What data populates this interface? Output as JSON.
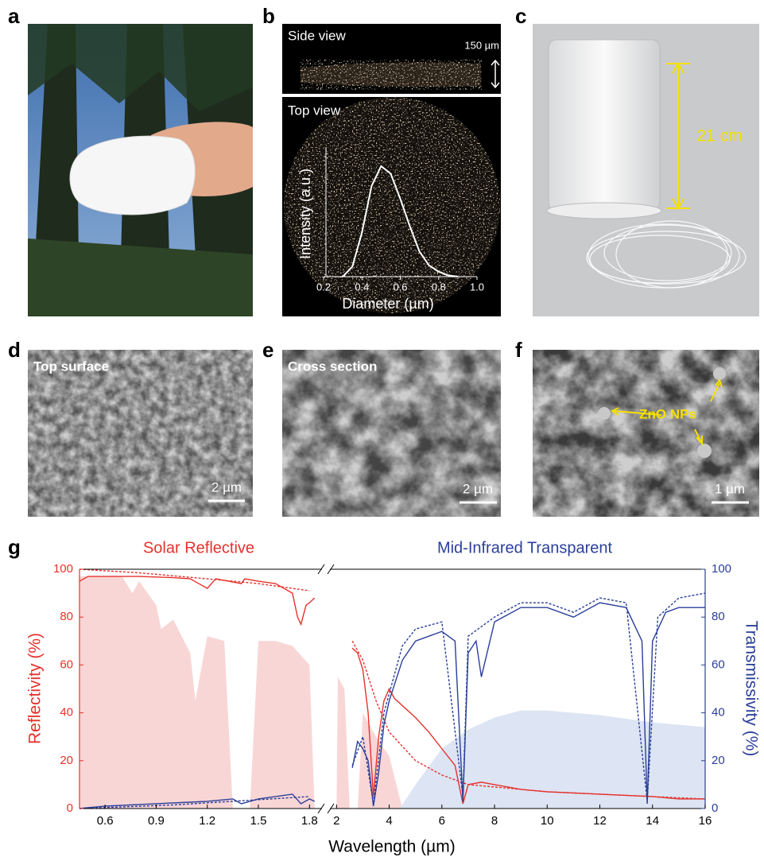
{
  "panel_labels": [
    "a",
    "b",
    "c",
    "d",
    "e",
    "f",
    "g"
  ],
  "b": {
    "side_view": "Side view",
    "scale": "150 µm",
    "top_view": "Top view"
  },
  "c": {
    "height": "21 cm"
  },
  "d": {
    "caption": "Top surface",
    "scale": "2 µm"
  },
  "e": {
    "caption": "Cross section",
    "scale": "2 µm"
  },
  "f": {
    "annotation": "ZnO NPs",
    "scale": "1 µm"
  },
  "chart_data": [
    {
      "type": "line",
      "xlabel": "Diameter (µm)",
      "ylabel": "Intensity (a.u.)",
      "color": "#ffffff",
      "x": [
        0.3,
        0.35,
        0.4,
        0.45,
        0.5,
        0.55,
        0.6,
        0.65,
        0.7,
        0.75,
        0.8,
        0.85,
        0.9
      ],
      "values": [
        0,
        0.08,
        0.35,
        0.72,
        0.88,
        0.82,
        0.62,
        0.4,
        0.2,
        0.09,
        0.04,
        0.01,
        0
      ],
      "xlim": [
        0.2,
        1.0
      ],
      "xticks": [
        0.2,
        0.4,
        0.6,
        0.8,
        {
          "value": 1.0,
          "label": "1.0"
        }
      ],
      "ylim": [
        0,
        1
      ]
    },
    {
      "type": "line",
      "annotations": [
        {
          "text": "Solar Reflective",
          "color": "#e5322d"
        },
        {
          "text": "Mid-Infrared Transparent",
          "color": "#2b3f9a"
        }
      ],
      "xlabel": "Wavelength (µm)",
      "ylabel": "Reflectivity (%)",
      "y2label": "Transmissivity (%)",
      "xlim": [
        0.45,
        16
      ],
      "xbreak": [
        1.85,
        1.9
      ],
      "xticks": [
        0.6,
        0.9,
        1.2,
        1.5,
        1.8,
        2,
        4,
        6,
        8,
        10,
        12,
        14,
        16
      ],
      "ylim": [
        0,
        100
      ],
      "yticks": [
        0,
        20,
        40,
        60,
        80,
        100
      ],
      "y2lim": [
        0,
        100
      ],
      "y2ticks": [
        0,
        20,
        40,
        60,
        80,
        100
      ],
      "series": [
        {
          "color": "#f9d6d6",
          "fill": true,
          "x": [
            0.45,
            0.6,
            0.7,
            0.76,
            0.8,
            0.9,
            0.93,
            1.0,
            1.1,
            1.13,
            1.2,
            1.3,
            1.35,
            1.45,
            1.5,
            1.6,
            1.7,
            1.8,
            1.83,
            null,
            2.0,
            2.05,
            2.3,
            2.5,
            2.8,
            3.0,
            3.5,
            4.0,
            4.5
          ],
          "values": [
            97,
            97,
            97,
            90,
            95,
            85,
            75,
            79,
            65,
            45,
            72,
            70,
            0,
            0,
            70,
            70,
            68,
            60,
            0,
            null,
            0,
            55,
            50,
            0,
            0,
            40,
            30,
            22,
            0
          ]
        },
        {
          "color": "#dde4f3",
          "fill": true,
          "axis": "y2",
          "x": [
            4.4,
            5,
            6,
            7,
            8,
            9,
            10,
            12,
            14,
            16
          ],
          "values": [
            0,
            10,
            25,
            33,
            38,
            41,
            41,
            39,
            36,
            34
          ]
        },
        {
          "color": "#e5322d",
          "style": "dashed",
          "x": [
            0.45,
            0.8,
            1.2,
            1.5,
            1.8,
            null,
            2.6,
            3,
            3.5,
            4,
            5,
            6,
            7,
            8,
            10,
            12,
            14,
            16
          ],
          "values": [
            100,
            98.5,
            96,
            94,
            91,
            null,
            70,
            62,
            45,
            32,
            20,
            14,
            10,
            9,
            7,
            6,
            5,
            4
          ]
        },
        {
          "color": "#e5322d",
          "style": "solid",
          "x": [
            0.45,
            0.5,
            0.6,
            0.8,
            1.0,
            1.1,
            1.2,
            1.25,
            1.4,
            1.42,
            1.5,
            1.6,
            1.7,
            1.73,
            1.75,
            1.78,
            1.8,
            1.83,
            null,
            2.6,
            2.8,
            3.0,
            3.2,
            3.4,
            3.6,
            3.8,
            4.0,
            4.2,
            4.6,
            5,
            5.5,
            6,
            6.5,
            6.8,
            7,
            7.5,
            8,
            9,
            10,
            12,
            14,
            15,
            16
          ],
          "values": [
            95,
            97,
            97,
            97,
            96.5,
            96,
            92,
            96,
            94,
            96,
            95,
            94,
            90,
            80,
            77,
            85,
            86,
            88,
            null,
            67,
            65,
            58,
            40,
            5,
            30,
            45,
            50,
            46,
            42,
            38,
            32,
            25,
            18,
            2,
            10,
            11,
            10,
            8,
            7,
            6,
            5,
            4,
            4
          ]
        },
        {
          "color": "#2b3f9a",
          "style": "dashed",
          "axis": "y2",
          "x": [
            0.45,
            1.0,
            1.8,
            null,
            2.6,
            3,
            3.4,
            3.8,
            4.5,
            5,
            6,
            6.8,
            7,
            8,
            9,
            10,
            11,
            12,
            13,
            13.8,
            14.2,
            15,
            16
          ],
          "values": [
            0,
            1.5,
            5,
            null,
            18,
            30,
            2,
            40,
            68,
            75,
            78,
            5,
            72,
            80,
            86,
            86,
            82,
            88,
            86,
            3,
            80,
            88,
            90
          ]
        },
        {
          "color": "#2b3f9a",
          "style": "solid",
          "axis": "y2",
          "x": [
            0.45,
            0.6,
            0.9,
            1.2,
            1.35,
            1.4,
            1.5,
            1.7,
            1.75,
            1.8,
            1.83,
            null,
            2.6,
            2.8,
            3.0,
            3.2,
            3.4,
            3.6,
            3.8,
            4,
            4.5,
            5,
            5.5,
            6,
            6.5,
            6.8,
            7,
            7.3,
            7.5,
            8,
            9,
            10,
            11,
            12,
            13,
            13.6,
            13.8,
            14,
            14.5,
            15,
            16
          ],
          "values": [
            0,
            1,
            2,
            3,
            4,
            2,
            4,
            6,
            2,
            4,
            3,
            null,
            17,
            28,
            25,
            20,
            1,
            15,
            35,
            45,
            62,
            70,
            72,
            74,
            70,
            3,
            65,
            70,
            55,
            78,
            84,
            84,
            80,
            86,
            84,
            70,
            2,
            70,
            82,
            84,
            84
          ]
        }
      ]
    }
  ]
}
